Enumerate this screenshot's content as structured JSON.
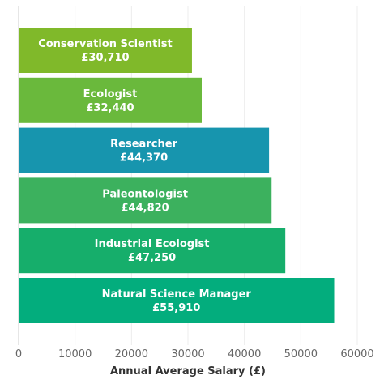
{
  "chart_data": {
    "type": "bar",
    "orientation": "horizontal",
    "categories": [
      "Conservation Scientist",
      "Ecologist",
      "Researcher",
      "Paleontologist",
      "Industrial Ecologist",
      "Natural Science Manager"
    ],
    "values": [
      30710,
      32440,
      44370,
      44820,
      47250,
      55910
    ],
    "value_labels": [
      "£30,710",
      "£32,440",
      "£44,370",
      "£44,820",
      "£47,250",
      "£55,910"
    ],
    "bar_colors": [
      "#80b92a",
      "#6ab93c",
      "#1795ae",
      "#3cb15e",
      "#16ae6b",
      "#03ad7d"
    ],
    "xlabel": "Annual Average Salary (£)",
    "ylabel": "",
    "title": "",
    "xlim": [
      0,
      60000
    ],
    "xticks": [
      0,
      10000,
      20000,
      30000,
      40000,
      50000,
      60000
    ],
    "xtick_labels": [
      "0",
      "10000",
      "20000",
      "30000",
      "40000",
      "50000",
      "60000"
    ],
    "grid": "vertical",
    "legend": "none"
  }
}
